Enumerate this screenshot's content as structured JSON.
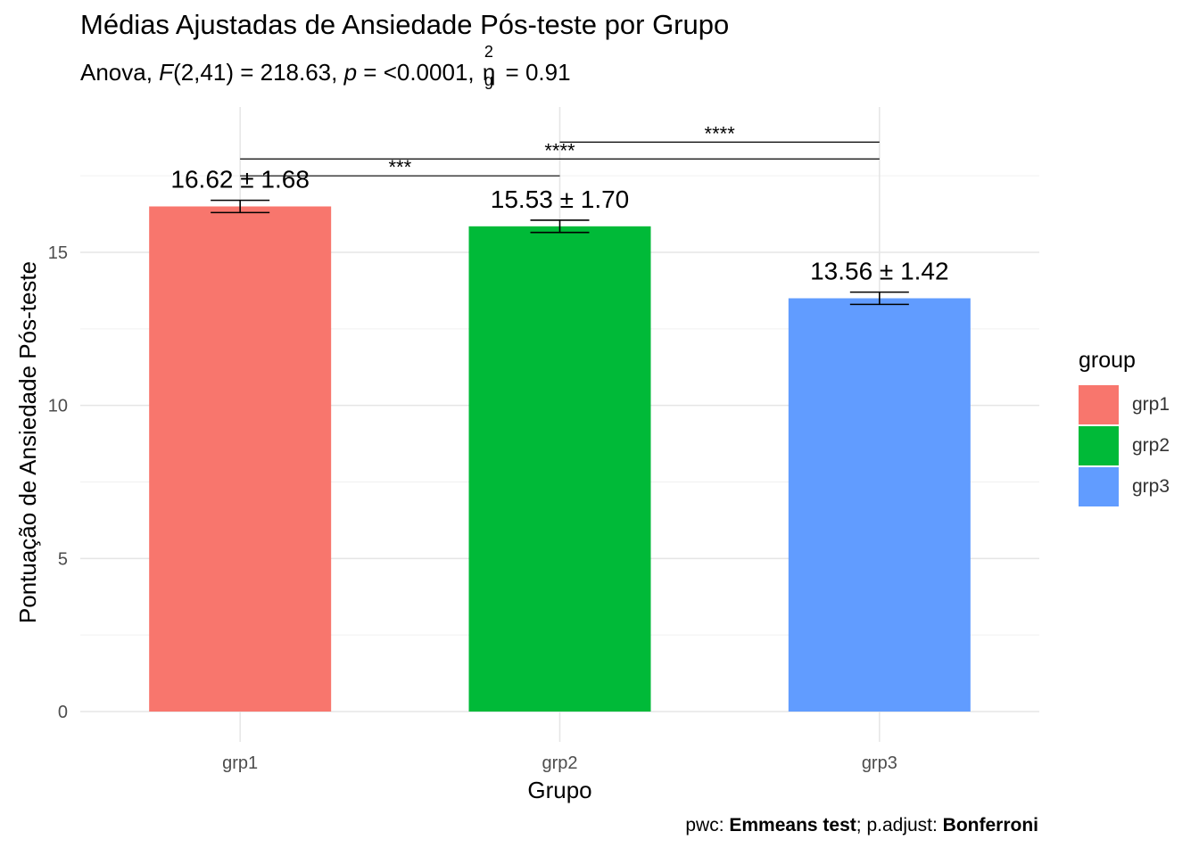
{
  "title": "Médias Ajustadas de Ansiedade Pós-teste por Grupo",
  "subtitle": {
    "prefix": "Anova, ",
    "F_symbol": "F",
    "F_part": "(2,41) = 218.63, ",
    "p_symbol": "p",
    "p_part": " = <0.0001, ",
    "eta_symbol": "η",
    "eta_sup": "2",
    "eta_sub": "g",
    "eta_part": " = 0.91"
  },
  "caption": {
    "pwc_label": "pwc: ",
    "pwc_value": "Emmeans test",
    "sep": "; p.adjust: ",
    "adjust_value": "Bonferroni"
  },
  "legend": {
    "title": "group",
    "items": [
      {
        "label": "grp1",
        "color": "#F8766D"
      },
      {
        "label": "grp2",
        "color": "#00BA38"
      },
      {
        "label": "grp3",
        "color": "#619CFF"
      }
    ]
  },
  "chart_data": {
    "type": "bar",
    "title": "Médias Ajustadas de Ansiedade Pós-teste por Grupo",
    "xlabel": "Grupo",
    "ylabel": "Pontuação de Ansiedade Pós-teste",
    "categories": [
      "grp1",
      "grp2",
      "grp3"
    ],
    "values": [
      16.5,
      15.85,
      13.5
    ],
    "error_low": [
      16.3,
      15.65,
      13.3
    ],
    "error_high": [
      16.7,
      16.05,
      13.7
    ],
    "value_labels": [
      "16.62 ± 1.68",
      "15.53 ± 1.70",
      "13.56 ± 1.42"
    ],
    "colors": [
      "#F8766D",
      "#00BA38",
      "#619CFF"
    ],
    "ylim": [
      0,
      19.5
    ],
    "yticks": [
      0,
      5,
      10,
      15
    ],
    "grid": true,
    "legend_position": "right",
    "significance": [
      {
        "from": "grp1",
        "to": "grp2",
        "y": 17.5,
        "label": "***"
      },
      {
        "from": "grp1",
        "to": "grp3",
        "y": 18.05,
        "label": "****"
      },
      {
        "from": "grp2",
        "to": "grp3",
        "y": 18.6,
        "label": "****"
      }
    ]
  }
}
